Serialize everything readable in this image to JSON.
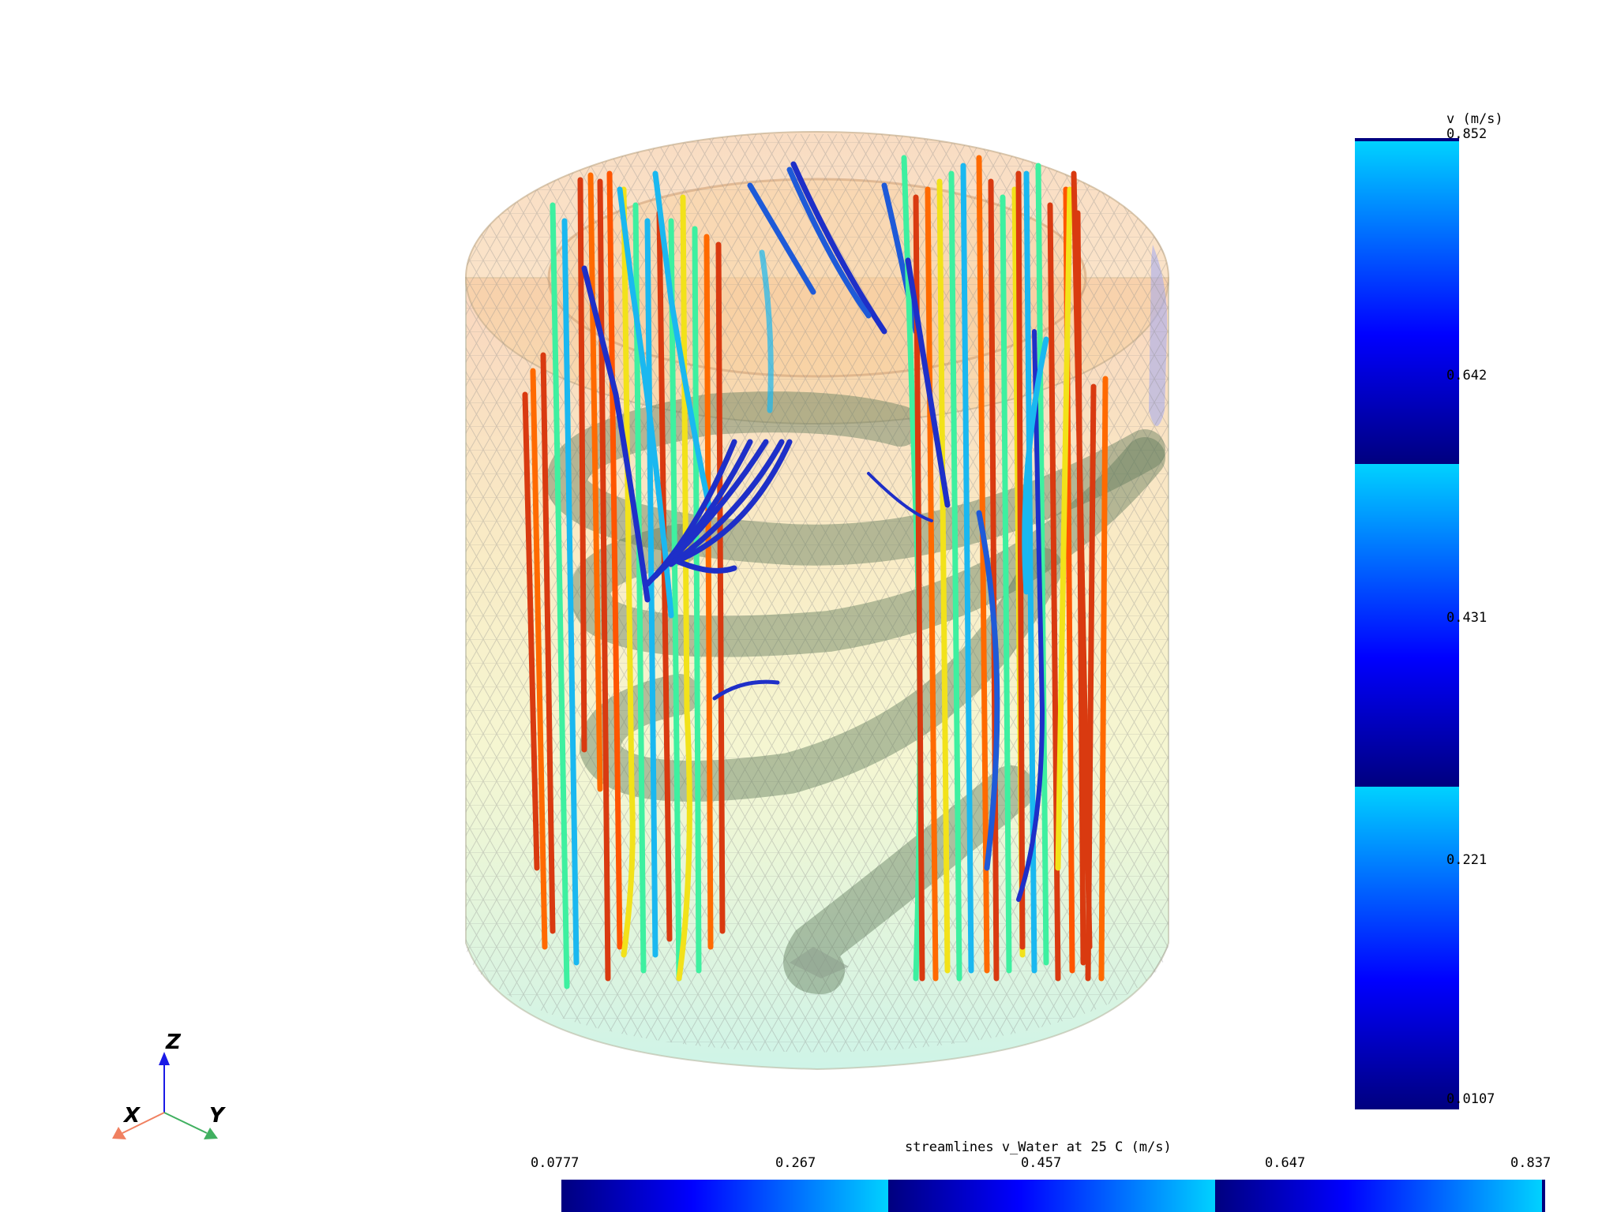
{
  "scene": {
    "description_free": true,
    "colors": {
      "cylinder_top": "#f5b48a",
      "cylinder_mid": "#f0e68c",
      "cylinder_bottom": "#9ee8d0",
      "mesh_line": "#8c8c8c",
      "coil_tube": "#5f7a5c",
      "streamline_red": "#d93a10",
      "streamline_orange": "#ff6a00",
      "streamline_yellow": "#f2e21a",
      "streamline_green": "#3ef0a0",
      "streamline_cyan": "#1ab8f0",
      "streamline_blue": "#1e2fc8"
    }
  },
  "vertical_colorbar": {
    "title": "v (m/s)",
    "ticks": [
      "0.852",
      "0.642",
      "0.431",
      "0.221",
      "0.0107"
    ],
    "range": [
      0.0107,
      0.852
    ],
    "bands": 3,
    "color_low": "#00007f",
    "color_mid": "#0000ff",
    "color_high": "#00d2ff"
  },
  "horizontal_colorbar": {
    "title": "streamlines v_Water at 25 C (m/s)",
    "ticks": [
      "0.0777",
      "0.267",
      "0.457",
      "0.647",
      "0.837"
    ],
    "range": [
      0.0777,
      0.837
    ],
    "bands": 3
  },
  "axes_triad": {
    "z_label": "Z",
    "x_label": "X",
    "y_label": "Y",
    "z_color": "#1a1ae6",
    "x_color": "#f08060",
    "y_color": "#40b060"
  }
}
